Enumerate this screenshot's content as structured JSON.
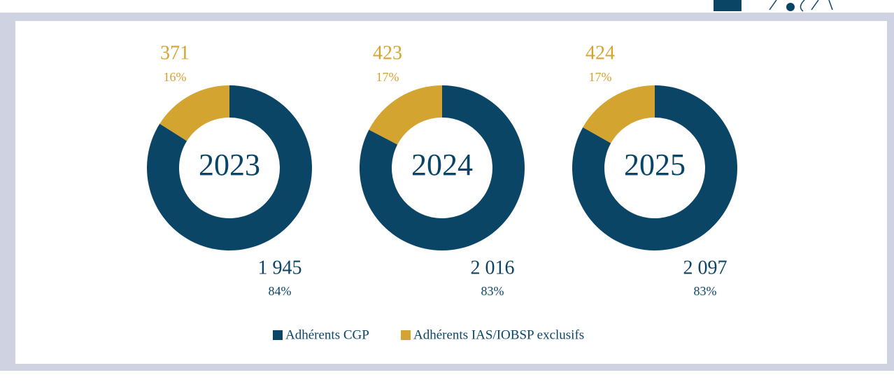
{
  "legend": [
    {
      "name": "Adhérents CGP",
      "color": "#0b4566"
    },
    {
      "name": "Adhérents IAS/IOBSP exclusifs",
      "color": "#d4a431"
    }
  ],
  "chart_data": [
    {
      "type": "pie",
      "title": "2023",
      "values": [
        1945,
        371
      ],
      "value_labels": [
        "1 945",
        "371"
      ],
      "share_labels": [
        "84%",
        "16%"
      ]
    },
    {
      "type": "pie",
      "title": "2024",
      "values": [
        2016,
        423
      ],
      "value_labels": [
        "2 016",
        "423"
      ],
      "share_labels": [
        "83%",
        "17%"
      ]
    },
    {
      "type": "pie",
      "title": "2025",
      "values": [
        2097,
        424
      ],
      "value_labels": [
        "2 097",
        "424"
      ],
      "share_labels": [
        "83%",
        "17%"
      ]
    }
  ]
}
